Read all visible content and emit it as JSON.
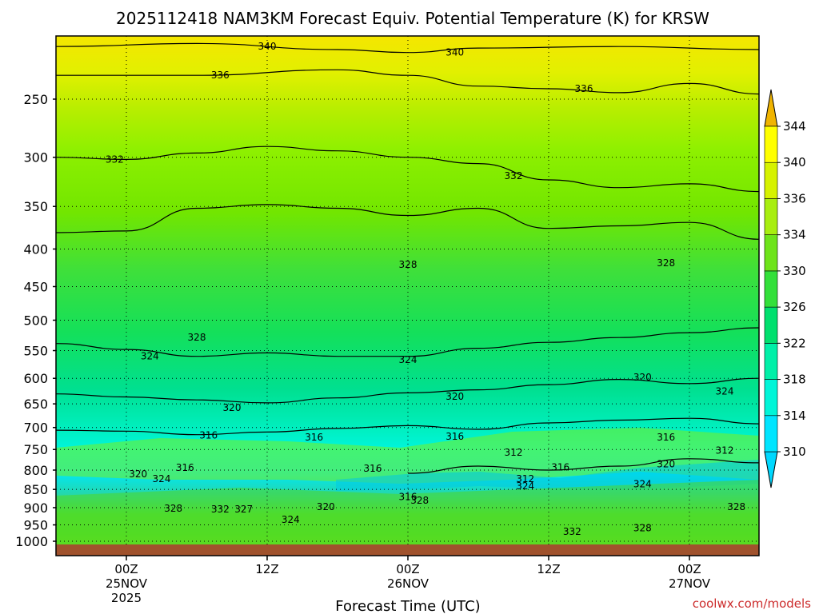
{
  "chart_data": {
    "type": "heatmap",
    "title": "2025112418 NAM3KM Forecast Equiv. Potential Temperature (K) for KRSW",
    "xlabel": "Forecast Time (UTC)",
    "ylabel": "",
    "y_scale": "log",
    "y_reversed": true,
    "ylim": [
      1000,
      200
    ],
    "yticks": [
      250,
      300,
      350,
      400,
      450,
      500,
      550,
      600,
      650,
      700,
      750,
      800,
      850,
      900,
      950,
      1000
    ],
    "xlim_hours": [
      -6,
      54
    ],
    "xticks": [
      {
        "hour": 0,
        "lines": [
          "00Z",
          "25NOV",
          "2025"
        ]
      },
      {
        "hour": 12,
        "lines": [
          "12Z"
        ]
      },
      {
        "hour": 24,
        "lines": [
          "00Z",
          "26NOV"
        ]
      },
      {
        "hour": 36,
        "lines": [
          "12Z"
        ]
      },
      {
        "hour": 48,
        "lines": [
          "00Z",
          "27NOV"
        ]
      }
    ],
    "grid": true,
    "colorbar": {
      "levels": [
        310,
        314,
        318,
        322,
        326,
        330,
        334,
        336,
        340,
        344
      ],
      "colors": [
        "#00e5ff",
        "#00f5d8",
        "#00f0a8",
        "#00e06e",
        "#33e03a",
        "#6ee41a",
        "#a8ee10",
        "#d6f200",
        "#ffff00",
        "#ffd400"
      ],
      "ticks": [
        310,
        314,
        318,
        322,
        326,
        330,
        334,
        336,
        340,
        344
      ]
    },
    "contour_levels": [
      312,
      316,
      320,
      324,
      328,
      332,
      336,
      340
    ],
    "series": [
      {
        "level": 340,
        "values": [
          [
            -6,
            212
          ],
          [
            6,
            210
          ],
          [
            18,
            214
          ],
          [
            24,
            216
          ],
          [
            30,
            213
          ],
          [
            42,
            212
          ],
          [
            54,
            214
          ]
        ]
      },
      {
        "level": 336,
        "values": [
          [
            -6,
            232
          ],
          [
            6,
            232
          ],
          [
            18,
            228
          ],
          [
            24,
            232
          ],
          [
            30,
            240
          ],
          [
            36,
            242
          ],
          [
            42,
            245
          ],
          [
            48,
            238
          ],
          [
            54,
            246
          ]
        ]
      },
      {
        "level": 332,
        "values": [
          [
            -6,
            300
          ],
          [
            0,
            302
          ],
          [
            6,
            296
          ],
          [
            12,
            290
          ],
          [
            18,
            294
          ],
          [
            24,
            300
          ],
          [
            30,
            306
          ],
          [
            36,
            322
          ],
          [
            42,
            330
          ],
          [
            48,
            326
          ],
          [
            54,
            334
          ]
        ]
      },
      {
        "level": 328,
        "values": [
          [
            -6,
            380
          ],
          [
            0,
            378
          ],
          [
            6,
            352
          ],
          [
            12,
            348
          ],
          [
            18,
            352
          ],
          [
            24,
            360
          ],
          [
            30,
            352
          ],
          [
            36,
            375
          ],
          [
            42,
            372
          ],
          [
            48,
            368
          ],
          [
            54,
            388
          ]
        ]
      },
      {
        "level": 324,
        "values": [
          [
            -6,
            538
          ],
          [
            0,
            548
          ],
          [
            6,
            560
          ],
          [
            12,
            554
          ],
          [
            18,
            560
          ],
          [
            24,
            560
          ],
          [
            30,
            546
          ],
          [
            36,
            536
          ],
          [
            42,
            528
          ],
          [
            48,
            520
          ],
          [
            54,
            512
          ]
        ]
      },
      {
        "level": 320,
        "values": [
          [
            -6,
            630
          ],
          [
            0,
            636
          ],
          [
            6,
            642
          ],
          [
            12,
            648
          ],
          [
            18,
            638
          ],
          [
            24,
            628
          ],
          [
            30,
            622
          ],
          [
            36,
            612
          ],
          [
            42,
            602
          ],
          [
            48,
            610
          ],
          [
            54,
            600
          ]
        ]
      },
      {
        "level": 316,
        "values": [
          [
            -6,
            706
          ],
          [
            0,
            708
          ],
          [
            6,
            716
          ],
          [
            12,
            710
          ],
          [
            18,
            702
          ],
          [
            24,
            696
          ],
          [
            30,
            704
          ],
          [
            36,
            690
          ],
          [
            42,
            684
          ],
          [
            48,
            680
          ],
          [
            54,
            692
          ]
        ]
      },
      {
        "level": 312,
        "values": [
          [
            24,
            808
          ],
          [
            30,
            790
          ],
          [
            36,
            800
          ],
          [
            42,
            790
          ],
          [
            48,
            772
          ],
          [
            54,
            782
          ]
        ]
      }
    ],
    "contour_labels": [
      {
        "text": "340",
        "hour": 12,
        "p": 212
      },
      {
        "text": "340",
        "hour": 28,
        "p": 216
      },
      {
        "text": "336",
        "hour": 8,
        "p": 232
      },
      {
        "text": "336",
        "hour": 39,
        "p": 242
      },
      {
        "text": "332",
        "hour": -1,
        "p": 302
      },
      {
        "text": "332",
        "hour": 33,
        "p": 318
      },
      {
        "text": "328",
        "hour": 24,
        "p": 420
      },
      {
        "text": "328",
        "hour": 46,
        "p": 418
      },
      {
        "text": "328",
        "hour": 6,
        "p": 528
      },
      {
        "text": "324",
        "hour": 2,
        "p": 560
      },
      {
        "text": "324",
        "hour": 24,
        "p": 566
      },
      {
        "text": "324",
        "hour": 51,
        "p": 625
      },
      {
        "text": "320",
        "hour": 9,
        "p": 658
      },
      {
        "text": "320",
        "hour": 28,
        "p": 635
      },
      {
        "text": "320",
        "hour": 44,
        "p": 598
      },
      {
        "text": "316",
        "hour": 7,
        "p": 717
      },
      {
        "text": "316",
        "hour": 16,
        "p": 722
      },
      {
        "text": "316",
        "hour": 28,
        "p": 720
      },
      {
        "text": "316",
        "hour": 46,
        "p": 722
      },
      {
        "text": "312",
        "hour": 33,
        "p": 757
      },
      {
        "text": "312",
        "hour": 51,
        "p": 752
      },
      {
        "text": "316",
        "hour": 5,
        "p": 794
      },
      {
        "text": "316",
        "hour": 21,
        "p": 796
      },
      {
        "text": "316",
        "hour": 37,
        "p": 793
      },
      {
        "text": "320",
        "hour": 1,
        "p": 810
      },
      {
        "text": "324",
        "hour": 3,
        "p": 822
      },
      {
        "text": "320",
        "hour": 46,
        "p": 785
      },
      {
        "text": "312",
        "hour": 34,
        "p": 822
      },
      {
        "text": "324",
        "hour": 34,
        "p": 841
      },
      {
        "text": "324",
        "hour": 44,
        "p": 836
      },
      {
        "text": "316",
        "hour": 24,
        "p": 870
      },
      {
        "text": "328",
        "hour": 25,
        "p": 880
      },
      {
        "text": "320",
        "hour": 17,
        "p": 898
      },
      {
        "text": "328",
        "hour": 4,
        "p": 902
      },
      {
        "text": "332",
        "hour": 8,
        "p": 905
      },
      {
        "text": "327",
        "hour": 10,
        "p": 905
      },
      {
        "text": "324",
        "hour": 14,
        "p": 934
      },
      {
        "text": "328",
        "hour": 52,
        "p": 898
      },
      {
        "text": "328",
        "hour": 44,
        "p": 960
      },
      {
        "text": "332",
        "hour": 38,
        "p": 970
      }
    ]
  },
  "credit": "coolwx.com/models"
}
